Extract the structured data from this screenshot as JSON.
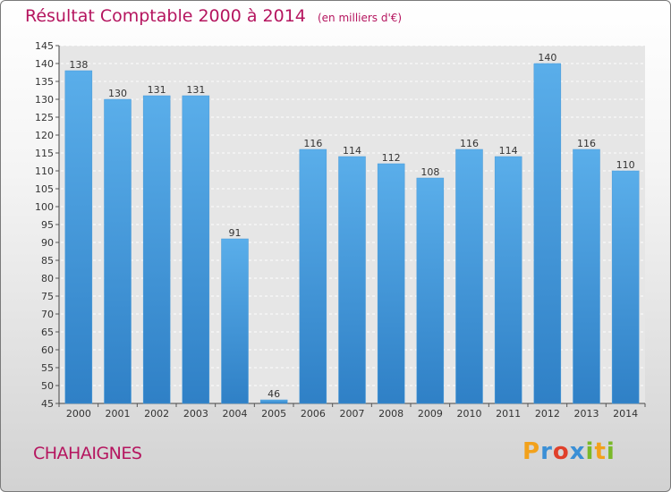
{
  "title": "Résultat Comptable 2000 à 2014",
  "unit": "(en milliers d'€)",
  "commune": "CHAHAIGNES",
  "logo": {
    "letters": [
      "P",
      "r",
      "o",
      "x",
      "i",
      "t",
      "i"
    ],
    "colors": [
      "#f2a11b",
      "#3a8fd6",
      "#e0402a",
      "#3a8fd6",
      "#7ab929",
      "#f2a11b",
      "#7ab929"
    ]
  },
  "colors": {
    "title": "#b5155f",
    "bar_top": "#5aaeea",
    "bar_bottom": "#2f80c6",
    "label": "#333333",
    "plot_bg": "#e6e6e6"
  },
  "chart_data": {
    "type": "bar",
    "categories": [
      "2000",
      "2001",
      "2002",
      "2003",
      "2004",
      "2005",
      "2006",
      "2007",
      "2008",
      "2009",
      "2010",
      "2011",
      "2012",
      "2013",
      "2014"
    ],
    "values": [
      138,
      130,
      131,
      131,
      91,
      46,
      116,
      114,
      112,
      108,
      116,
      114,
      140,
      116,
      110
    ],
    "ylim": [
      45,
      145
    ],
    "ytick_step": 5,
    "grid": true,
    "legend": "none"
  }
}
